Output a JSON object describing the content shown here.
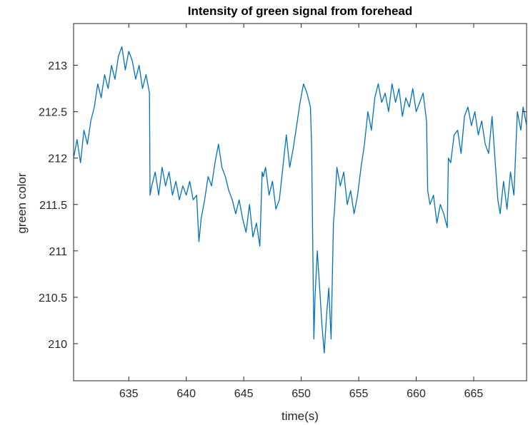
{
  "chart_data": {
    "type": "line",
    "title": "Intensity of green signal from forehead",
    "xlabel": "time(s)",
    "ylabel": "green color",
    "xlim": [
      630.2,
      669.6
    ],
    "ylim": [
      209.6,
      213.45
    ],
    "xticks": [
      635,
      640,
      645,
      650,
      655,
      660,
      665
    ],
    "yticks": [
      210,
      210.5,
      211,
      211.5,
      212,
      212.5,
      213
    ],
    "grid": false,
    "legend": "none",
    "colors": {
      "line": "#0072BD",
      "axes": "#262626",
      "text": "#262626"
    },
    "series": [
      {
        "x": [
          630.2,
          630.5,
          630.8,
          631.1,
          631.4,
          631.7,
          632.0,
          632.3,
          632.6,
          632.9,
          633.2,
          633.5,
          633.8,
          634.1,
          634.4,
          634.7,
          635.0,
          635.3,
          635.6,
          635.9,
          636.2,
          636.5,
          636.8,
          636.85,
          637.0,
          637.3,
          637.6,
          637.9,
          638.2,
          638.5,
          638.8,
          639.1,
          639.4,
          639.7,
          640.0,
          640.3,
          640.6,
          640.9,
          641.1,
          641.3,
          641.6,
          641.9,
          642.2,
          642.5,
          642.8,
          643.1,
          643.4,
          643.7,
          644.0,
          644.3,
          644.6,
          644.9,
          645.2,
          645.5,
          645.8,
          646.1,
          646.4,
          646.6,
          646.7,
          646.9,
          647.2,
          647.5,
          647.8,
          648.1,
          648.4,
          648.7,
          649.0,
          649.3,
          649.6,
          649.9,
          650.2,
          650.5,
          650.8,
          650.9,
          651.1,
          651.2,
          651.4,
          651.6,
          651.8,
          652.0,
          652.2,
          652.4,
          652.6,
          652.8,
          652.9,
          653.1,
          653.4,
          653.7,
          654.0,
          654.3,
          654.6,
          654.9,
          655.2,
          655.5,
          655.8,
          656.1,
          656.4,
          656.7,
          657.0,
          657.3,
          657.6,
          657.9,
          658.2,
          658.5,
          658.8,
          659.1,
          659.4,
          659.7,
          660.0,
          660.3,
          660.6,
          660.9,
          661.0,
          661.2,
          661.5,
          661.8,
          662.1,
          662.4,
          662.7,
          662.8,
          663.0,
          663.3,
          663.6,
          663.9,
          664.2,
          664.5,
          664.8,
          665.1,
          665.4,
          665.7,
          666.0,
          666.3,
          666.6,
          666.9,
          667.1,
          667.3,
          667.6,
          667.9,
          668.2,
          668.5,
          668.8,
          669.1,
          669.3,
          669.6
        ],
        "y": [
          212.0,
          212.2,
          211.95,
          212.3,
          212.15,
          212.4,
          212.55,
          212.8,
          212.65,
          212.9,
          212.75,
          213.0,
          212.85,
          213.1,
          213.2,
          212.95,
          213.15,
          213.05,
          212.85,
          213.0,
          212.75,
          212.9,
          212.7,
          211.6,
          211.7,
          211.85,
          211.6,
          211.9,
          211.7,
          211.85,
          211.6,
          211.75,
          211.55,
          211.7,
          211.6,
          211.75,
          211.55,
          211.6,
          211.1,
          211.35,
          211.55,
          211.8,
          211.7,
          211.95,
          212.15,
          211.9,
          211.8,
          211.65,
          211.55,
          211.4,
          211.55,
          211.35,
          211.2,
          211.5,
          211.15,
          211.3,
          211.05,
          211.85,
          211.8,
          211.9,
          211.6,
          211.75,
          211.45,
          211.55,
          211.9,
          212.25,
          211.9,
          212.1,
          212.35,
          212.6,
          212.8,
          212.7,
          212.55,
          212.15,
          210.05,
          210.5,
          211.0,
          210.6,
          210.2,
          209.9,
          210.3,
          210.6,
          210.05,
          211.3,
          211.45,
          211.9,
          211.7,
          211.85,
          211.5,
          211.65,
          211.4,
          211.6,
          211.9,
          212.15,
          212.5,
          212.3,
          212.65,
          212.8,
          212.6,
          212.7,
          212.5,
          212.8,
          212.6,
          212.75,
          212.45,
          212.65,
          212.55,
          212.75,
          212.5,
          212.6,
          212.7,
          212.4,
          211.65,
          211.5,
          211.6,
          211.3,
          211.5,
          211.4,
          211.25,
          212.0,
          211.95,
          212.25,
          212.3,
          212.05,
          212.45,
          212.55,
          212.35,
          212.5,
          212.25,
          212.4,
          212.15,
          212.05,
          212.45,
          211.9,
          211.55,
          211.4,
          211.75,
          211.45,
          211.85,
          211.6,
          212.5,
          212.3,
          212.55,
          212.35
        ]
      }
    ]
  }
}
